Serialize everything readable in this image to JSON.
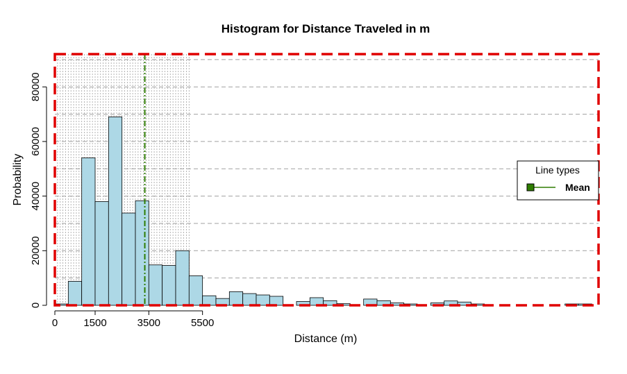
{
  "chart_data": {
    "type": "bar",
    "title": "Histogram for Distance Traveled in m",
    "xlabel": "Distance (m)",
    "ylabel": "Probability",
    "xlim": [
      0,
      20250
    ],
    "ylim": [
      0,
      92000
    ],
    "x_ticks": [
      0,
      1500,
      3500,
      5500
    ],
    "y_ticks": [
      0,
      20000,
      40000,
      60000,
      80000
    ],
    "bin_width": 500,
    "bins": [
      {
        "x0": 0,
        "x1": 500,
        "value": 500
      },
      {
        "x0": 500,
        "x1": 1000,
        "value": 8800
      },
      {
        "x0": 1000,
        "x1": 1500,
        "value": 54000
      },
      {
        "x0": 1500,
        "x1": 2000,
        "value": 38000
      },
      {
        "x0": 2000,
        "x1": 2500,
        "value": 69000
      },
      {
        "x0": 2500,
        "x1": 3000,
        "value": 33800
      },
      {
        "x0": 3000,
        "x1": 3500,
        "value": 38300
      },
      {
        "x0": 3500,
        "x1": 4000,
        "value": 14800
      },
      {
        "x0": 4000,
        "x1": 4500,
        "value": 14600
      },
      {
        "x0": 4500,
        "x1": 5000,
        "value": 20000
      },
      {
        "x0": 5000,
        "x1": 5500,
        "value": 10800
      },
      {
        "x0": 5500,
        "x1": 6000,
        "value": 3500
      },
      {
        "x0": 6000,
        "x1": 6500,
        "value": 2500
      },
      {
        "x0": 6500,
        "x1": 7000,
        "value": 5000
      },
      {
        "x0": 7000,
        "x1": 7500,
        "value": 4300
      },
      {
        "x0": 7500,
        "x1": 8000,
        "value": 3800
      },
      {
        "x0": 8000,
        "x1": 8500,
        "value": 3300
      },
      {
        "x0": 8500,
        "x1": 9000,
        "value": 0
      },
      {
        "x0": 9000,
        "x1": 9500,
        "value": 1400
      },
      {
        "x0": 9500,
        "x1": 10000,
        "value": 2800
      },
      {
        "x0": 10000,
        "x1": 10500,
        "value": 1700
      },
      {
        "x0": 10500,
        "x1": 11000,
        "value": 600
      },
      {
        "x0": 11000,
        "x1": 11500,
        "value": 0
      },
      {
        "x0": 11500,
        "x1": 12000,
        "value": 2300
      },
      {
        "x0": 12000,
        "x1": 12500,
        "value": 1700
      },
      {
        "x0": 12500,
        "x1": 13000,
        "value": 900
      },
      {
        "x0": 13000,
        "x1": 13500,
        "value": 500
      },
      {
        "x0": 13500,
        "x1": 14000,
        "value": 0
      },
      {
        "x0": 14000,
        "x1": 14500,
        "value": 900
      },
      {
        "x0": 14500,
        "x1": 15000,
        "value": 1600
      },
      {
        "x0": 15000,
        "x1": 15500,
        "value": 1200
      },
      {
        "x0": 15500,
        "x1": 16000,
        "value": 500
      },
      {
        "x0": 16000,
        "x1": 16500,
        "value": 0
      },
      {
        "x0": 16500,
        "x1": 17000,
        "value": 0
      },
      {
        "x0": 17000,
        "x1": 17500,
        "value": 0
      },
      {
        "x0": 17500,
        "x1": 18000,
        "value": 0
      },
      {
        "x0": 18000,
        "x1": 18500,
        "value": 0
      },
      {
        "x0": 18500,
        "x1": 19000,
        "value": 0
      },
      {
        "x0": 19000,
        "x1": 19500,
        "value": 500
      },
      {
        "x0": 19500,
        "x1": 20000,
        "value": 500
      }
    ],
    "mean": 3350,
    "legend": {
      "title": "Line types",
      "entries": [
        {
          "label": "Mean",
          "color": "#2e7d00"
        }
      ],
      "placement": "right"
    },
    "colors": {
      "bar_fill": "#add8e6",
      "bar_stroke": "#000000",
      "mean_line": "#2e7d00",
      "frame": "#e00000",
      "grid": "#a0a0a0"
    },
    "grid": true
  }
}
